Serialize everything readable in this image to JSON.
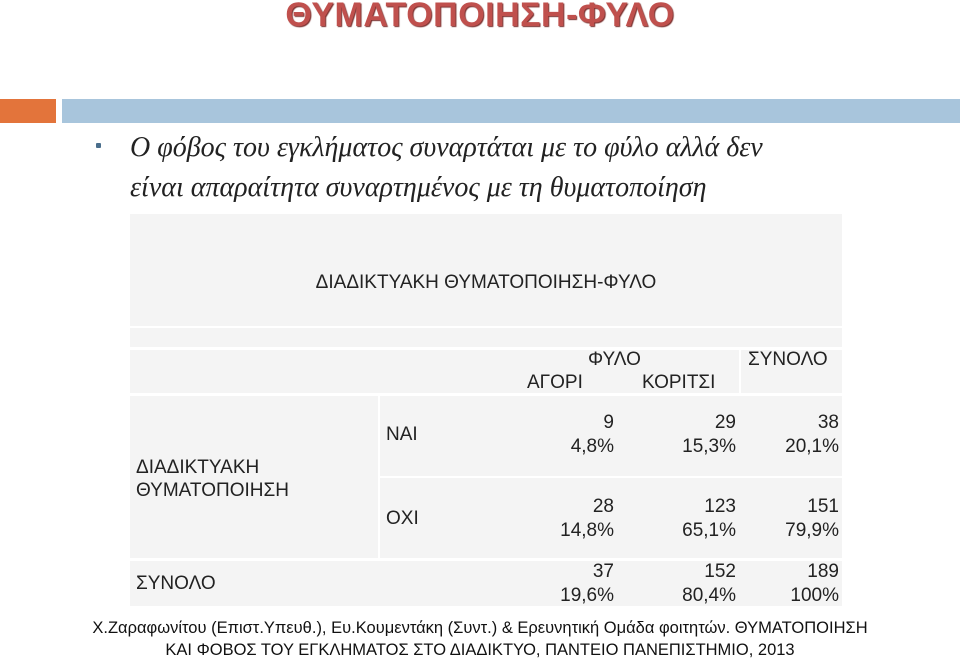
{
  "slide": {
    "title": "ΘΥΜΑΤΟΠΟΙΗΣΗ-ΦΥΛΟ",
    "bullet_line1": "Ο φόβος του εγκλήματος συναρτάται με το φύλο αλλά δεν",
    "bullet_line2": "είναι απαραίτητα συναρτημένος με τη θυματοποίηση",
    "accent_orange": "#e3743b",
    "accent_blue": "#a8c5dc",
    "title_color": "#c0504d"
  },
  "table": {
    "title": "ΔΙΑΔΙΚΤΥΑΚΗ ΘΥΜΑΤΟΠΟΙΗΣΗ-ΦΥΛΟ",
    "header_group": "ΦΥΛΟ",
    "header_total": "ΣΥΝΟΛΟ",
    "col_boys": "ΑΓΟΡΙ",
    "col_girls": "ΚΟΡΙΤΣΙ",
    "row_group_line1": "ΔΙΑΔΙΚΤΥΑΚΗ",
    "row_group_line2": "ΘΥΜΑΤΟΠΟΙΗΣΗ",
    "row_yes": "ΝΑΙ",
    "row_no": "ΟΧΙ",
    "row_total": "ΣΥΝΟΛΟ",
    "yes": {
      "boys_n": "9",
      "boys_p": "4,8%",
      "girls_n": "29",
      "girls_p": "15,3%",
      "total_n": "38",
      "total_p": "20,1%"
    },
    "no": {
      "boys_n": "28",
      "boys_p": "14,8%",
      "girls_n": "123",
      "girls_p": "65,1%",
      "total_n": "151",
      "total_p": "79,9%"
    },
    "total": {
      "boys_n": "37",
      "boys_p": "19,6%",
      "girls_n": "152",
      "girls_p": "80,4%",
      "total_n": "189",
      "total_p": "100%"
    }
  },
  "footer": {
    "line1": "Χ.Ζαραφωνίτου (Επιστ.Υπευθ.), Ευ.Κουμεντάκη (Συντ.) & Ερευνητική Ομάδα φοιτητών. ΘΥΜΑΤΟΠΟΙΗΣΗ",
    "line2": "ΚΑΙ ΦΟΒΟΣ ΤΟΥ ΕΓΚΛΗΜΑΤΟΣ ΣΤΟ ΔΙΑΔΙΚΤΥΟ, ΠΑΝΤΕΙΟ ΠΑΝΕΠΙΣΤΗΜΙΟ, 2013"
  }
}
